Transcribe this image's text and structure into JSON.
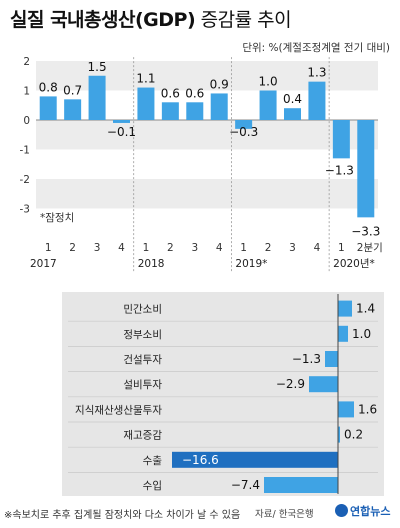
{
  "header": {
    "title_bold": "실질 국내총생산(GDP)",
    "title_rest": " 증감률 추이",
    "unit": "단위: %(계절조정계열 전기 대비)"
  },
  "footer": {
    "note": "※속보치로 추후 집계될 잠정치와 다소 차이가 날 수 있음",
    "source": "자료/ 한국은행",
    "logo": "연합뉴스"
  },
  "colors": {
    "bar": "#3fa3e4",
    "bar_dark": "#1f6fc0",
    "band": "#ececec",
    "panel": "#e6e6e6"
  },
  "chart_data": [
    {
      "type": "bar",
      "ylim": [
        -3.5,
        2.2
      ],
      "yticks": [
        2,
        1,
        0,
        -1,
        -2,
        -3
      ],
      "annotation": "*잠정치",
      "quarter_labels": [
        "1",
        "2",
        "3",
        "4",
        "1",
        "2",
        "3",
        "4",
        "1",
        "2",
        "3",
        "4",
        "1",
        "2분기"
      ],
      "year_labels": [
        {
          "text": "2017",
          "start": 0
        },
        {
          "text": "2018",
          "start": 4
        },
        {
          "text": "2019*",
          "start": 8
        },
        {
          "text": "2020년*",
          "start": 12
        }
      ],
      "values": [
        0.8,
        0.7,
        1.5,
        -0.1,
        1.1,
        0.6,
        0.6,
        0.9,
        -0.3,
        1.0,
        0.4,
        1.3,
        -1.3,
        -3.3
      ],
      "value_labels": [
        "0.8",
        "0.7",
        "1.5",
        "−0.1",
        "1.1",
        "0.6",
        "0.6",
        "0.9",
        "−0.3",
        "1.0",
        "0.4",
        "1.3",
        "−1.3",
        "−3.3"
      ]
    },
    {
      "type": "bar",
      "orientation": "horizontal",
      "categories": [
        "민간소비",
        "정부소비",
        "건설투자",
        "설비투자",
        "지식재산생산물투자",
        "재고증감",
        "수출",
        "수입"
      ],
      "values": [
        1.4,
        1.0,
        -1.3,
        -2.9,
        1.6,
        0.2,
        -16.6,
        -7.4
      ],
      "value_labels": [
        "1.4",
        "1.0",
        "−1.3",
        "−2.9",
        "1.6",
        "0.2",
        "−16.6",
        "−7.4"
      ]
    }
  ]
}
